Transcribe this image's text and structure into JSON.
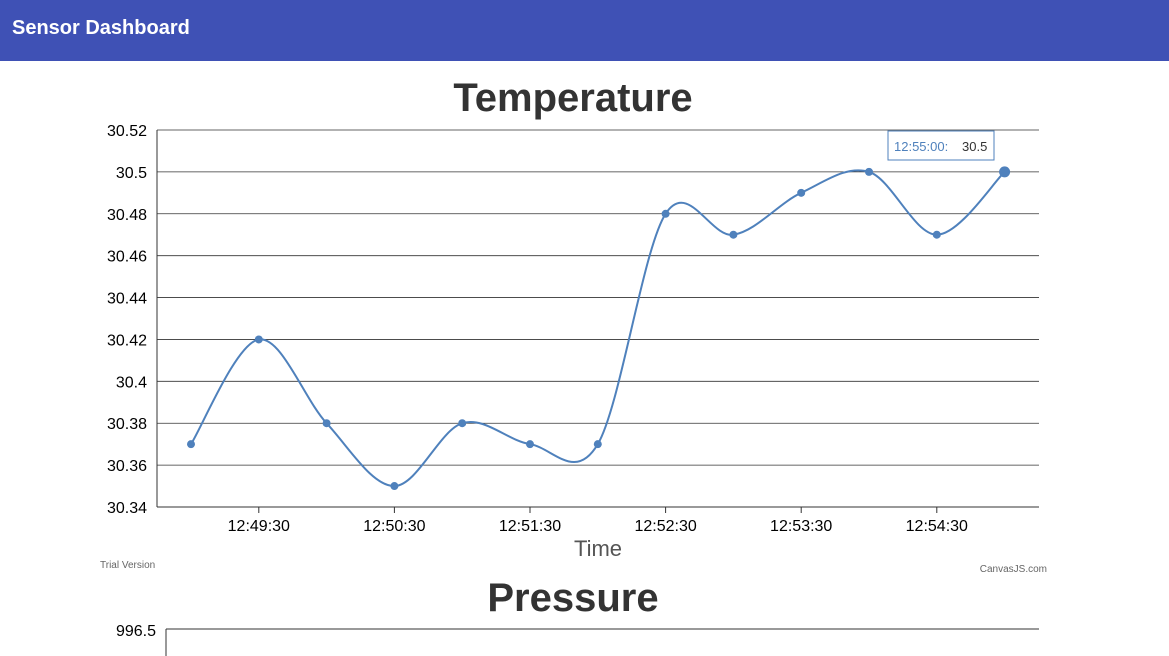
{
  "header": {
    "title": "Sensor Dashboard",
    "color": "#3f51b5"
  },
  "watermarks": {
    "trial": "Trial Version",
    "credit": "CanvasJS.com"
  },
  "chart_data": [
    {
      "type": "line",
      "title": "Temperature",
      "xlabel": "Time",
      "ylabel": "",
      "line_color": "#4f81bc",
      "x": [
        "12:49:00",
        "12:49:30",
        "12:50:00",
        "12:50:30",
        "12:51:00",
        "12:51:30",
        "12:52:00",
        "12:52:30",
        "12:53:00",
        "12:53:30",
        "12:54:00",
        "12:54:30",
        "12:55:00"
      ],
      "values": [
        30.37,
        30.42,
        30.38,
        30.35,
        30.38,
        30.37,
        30.37,
        30.48,
        30.47,
        30.49,
        30.5,
        30.47,
        30.5
      ],
      "ylim": [
        30.34,
        30.52
      ],
      "y_ticks": [
        "30.34",
        "30.36",
        "30.38",
        "30.4",
        "30.42",
        "30.44",
        "30.46",
        "30.48",
        "30.5",
        "30.52"
      ],
      "x_ticks": [
        "12:49:30",
        "12:50:30",
        "12:51:30",
        "12:52:30",
        "12:53:30",
        "12:54:30"
      ],
      "grid": true,
      "tooltip": {
        "label": "12:55:00:",
        "value": "30.5"
      }
    },
    {
      "type": "line",
      "title": "Pressure",
      "y_ticks": [
        "996.5"
      ],
      "grid": true
    }
  ]
}
